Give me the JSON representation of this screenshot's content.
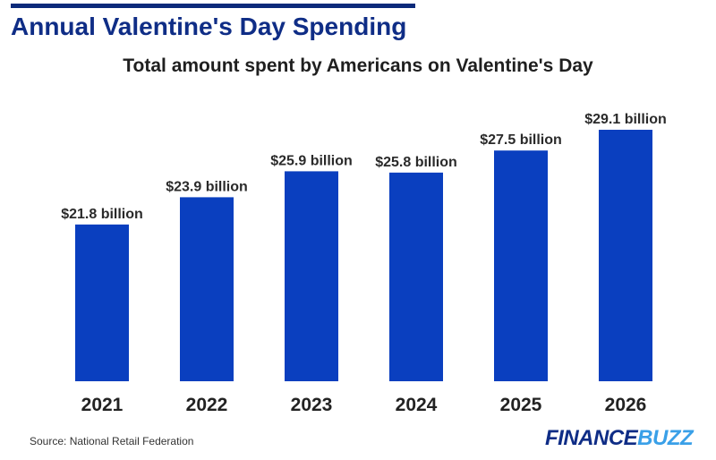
{
  "headline": "Annual Valentine's Day Spending",
  "source": "Source: National Retail Federation",
  "logo": {
    "part1": "FINANCE",
    "part2": "BUZZ"
  },
  "colors": {
    "bar": "#0a3fbf",
    "headline": "#0f2d86",
    "rule": "#0b2a7a",
    "logo_accent": "#3aa0e8"
  },
  "chart_data": {
    "type": "bar",
    "title": "Total amount spent by Americans on Valentine's Day",
    "categories": [
      "2021",
      "2022",
      "2023",
      "2024",
      "2025",
      "2026"
    ],
    "values": [
      21.8,
      23.9,
      25.9,
      25.8,
      27.5,
      29.1
    ],
    "value_labels": [
      "$21.8 billion",
      "$23.9 billion",
      "$25.9 billion",
      "$25.8 billion",
      "$27.5 billion",
      "$29.1 billion"
    ],
    "unit": "billion",
    "xlabel": "",
    "ylabel": "",
    "ylim": [
      0,
      35
    ],
    "grid": false,
    "legend": "none"
  }
}
